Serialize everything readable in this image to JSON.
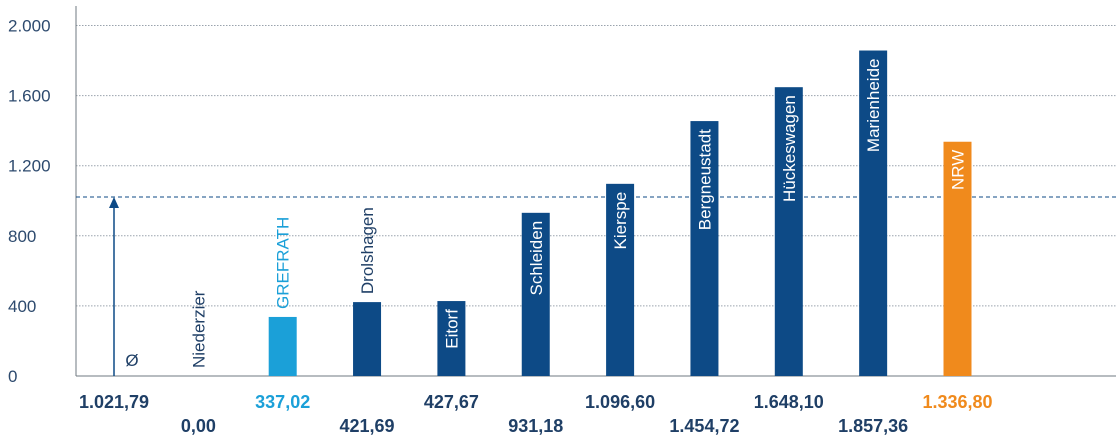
{
  "chart_data": {
    "type": "bar",
    "title": "",
    "xlabel": "",
    "ylabel": "",
    "ylim": [
      0,
      2100
    ],
    "yticks": [
      0,
      400,
      800,
      1200,
      1600,
      2000
    ],
    "ytick_labels": [
      "0",
      "400",
      "800",
      "1.200",
      "1.600",
      "2.000"
    ],
    "grid": true,
    "reference_line": {
      "value": 1021.79
    },
    "categories": [
      "Ø",
      "Niederzier",
      "GREFRATH",
      "Drolshagen",
      "Eitorf",
      "Schleiden",
      "Kierspe",
      "Bergneustadt",
      "Hückeswagen",
      "Marienheide",
      "NRW"
    ],
    "values": [
      1021.79,
      0.0,
      337.02,
      421.69,
      427.67,
      931.18,
      1096.6,
      1454.72,
      1648.1,
      1857.36,
      1336.8
    ],
    "value_labels": [
      "1.021,79",
      "0,00",
      "337,02",
      "421,69",
      "427,67",
      "931,18",
      "1.096,60",
      "1.454,72",
      "1.648,10",
      "1.857,36",
      "1.336,80"
    ],
    "colors": {
      "default": "#0d4a86",
      "highlight": "#1ba0d8",
      "nrw": "#f08a1c",
      "grid": "#9aa3ad",
      "axis": "#6f7880",
      "reference": "#0d4a86",
      "label_dark": "#1f3f66",
      "label_inside": "#ffffff"
    },
    "highlight_index": 2,
    "nrw_index": 10,
    "average_index": 0
  }
}
